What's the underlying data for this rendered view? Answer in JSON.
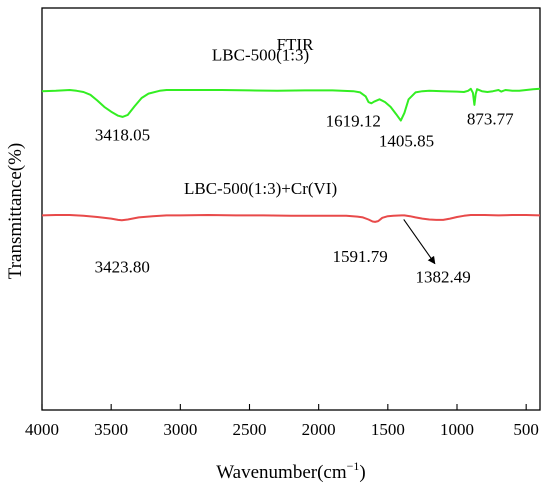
{
  "chart_data": {
    "type": "line",
    "title": "FTIR",
    "xlabel": "Wavenumber(cm⁻¹)",
    "ylabel": "Transmittance(%)",
    "x_reversed": true,
    "xlim": [
      4000,
      400
    ],
    "ylim": [
      0,
      100
    ],
    "y_tick_labels": "none",
    "grid": false,
    "x_ticks": [
      4000,
      3500,
      3000,
      2500,
      2000,
      1500,
      1000,
      500
    ],
    "series": [
      {
        "name": "LBC-500(1:3)",
        "color": "#33ee22",
        "points": [
          [
            4000,
            79.3
          ],
          [
            3900,
            79.4
          ],
          [
            3800,
            79.6
          ],
          [
            3750,
            79.4
          ],
          [
            3700,
            79.1
          ],
          [
            3650,
            78.4
          ],
          [
            3600,
            77.0
          ],
          [
            3550,
            75.4
          ],
          [
            3500,
            74.2
          ],
          [
            3450,
            73.2
          ],
          [
            3418,
            72.9
          ],
          [
            3380,
            73.4
          ],
          [
            3330,
            75.6
          ],
          [
            3280,
            77.6
          ],
          [
            3230,
            78.7
          ],
          [
            3150,
            79.4
          ],
          [
            3100,
            79.6
          ],
          [
            3000,
            79.6
          ],
          [
            2900,
            79.6
          ],
          [
            2700,
            79.6
          ],
          [
            2500,
            79.5
          ],
          [
            2300,
            79.4
          ],
          [
            2100,
            79.5
          ],
          [
            1900,
            79.5
          ],
          [
            1750,
            79.3
          ],
          [
            1700,
            79.0
          ],
          [
            1660,
            78.0
          ],
          [
            1640,
            76.6
          ],
          [
            1619,
            76.3
          ],
          [
            1600,
            76.7
          ],
          [
            1560,
            77.3
          ],
          [
            1520,
            76.6
          ],
          [
            1480,
            75.4
          ],
          [
            1440,
            73.6
          ],
          [
            1406,
            72.0
          ],
          [
            1380,
            73.9
          ],
          [
            1350,
            77.3
          ],
          [
            1300,
            79.0
          ],
          [
            1250,
            79.3
          ],
          [
            1200,
            79.4
          ],
          [
            1100,
            79.3
          ],
          [
            1000,
            79.2
          ],
          [
            950,
            79.1
          ],
          [
            920,
            79.4
          ],
          [
            900,
            79.9
          ],
          [
            885,
            78.9
          ],
          [
            874,
            75.9
          ],
          [
            865,
            78.6
          ],
          [
            855,
            79.8
          ],
          [
            820,
            79.3
          ],
          [
            780,
            79.1
          ],
          [
            740,
            79.3
          ],
          [
            700,
            79.6
          ],
          [
            680,
            79.2
          ],
          [
            650,
            79.6
          ],
          [
            600,
            79.4
          ],
          [
            550,
            79.4
          ],
          [
            500,
            79.6
          ],
          [
            450,
            79.8
          ],
          [
            400,
            79.9
          ]
        ]
      },
      {
        "name": "LBC-500(1:3)+Cr(VI)",
        "color": "#e84a4a",
        "points": [
          [
            4000,
            48.4
          ],
          [
            3900,
            48.5
          ],
          [
            3800,
            48.5
          ],
          [
            3700,
            48.3
          ],
          [
            3600,
            48.0
          ],
          [
            3500,
            47.6
          ],
          [
            3450,
            47.3
          ],
          [
            3423,
            47.2
          ],
          [
            3380,
            47.4
          ],
          [
            3300,
            47.9
          ],
          [
            3200,
            48.2
          ],
          [
            3100,
            48.4
          ],
          [
            3000,
            48.4
          ],
          [
            2800,
            48.5
          ],
          [
            2600,
            48.4
          ],
          [
            2400,
            48.4
          ],
          [
            2200,
            48.3
          ],
          [
            2000,
            48.3
          ],
          [
            1800,
            48.3
          ],
          [
            1720,
            48.1
          ],
          [
            1680,
            47.9
          ],
          [
            1640,
            47.4
          ],
          [
            1610,
            46.9
          ],
          [
            1592,
            46.8
          ],
          [
            1570,
            47.0
          ],
          [
            1540,
            47.8
          ],
          [
            1500,
            48.2
          ],
          [
            1460,
            48.3
          ],
          [
            1400,
            48.4
          ],
          [
            1380,
            48.4
          ],
          [
            1340,
            48.2
          ],
          [
            1300,
            47.9
          ],
          [
            1250,
            47.6
          ],
          [
            1200,
            47.4
          ],
          [
            1150,
            47.3
          ],
          [
            1100,
            47.3
          ],
          [
            1050,
            47.6
          ],
          [
            1000,
            48.0
          ],
          [
            950,
            48.3
          ],
          [
            900,
            48.5
          ],
          [
            800,
            48.5
          ],
          [
            700,
            48.4
          ],
          [
            600,
            48.5
          ],
          [
            500,
            48.5
          ],
          [
            400,
            48.4
          ]
        ]
      }
    ],
    "annotations": [
      {
        "text": "LBC-500(1:3)",
        "x": 2420,
        "y": 87
      },
      {
        "text": "3418.05",
        "x": 3418,
        "y": 67
      },
      {
        "text": "1619.12",
        "x": 1750,
        "y": 70.5
      },
      {
        "text": "1405.85",
        "x": 1365,
        "y": 65.5
      },
      {
        "text": "873.77",
        "x": 760,
        "y": 71
      },
      {
        "text": "LBC-500(1:3)+Cr(VI)",
        "x": 2420,
        "y": 53.7
      },
      {
        "text": "3423.80",
        "x": 3420,
        "y": 34.2
      },
      {
        "text": "1591.79",
        "x": 1700,
        "y": 36.8
      },
      {
        "text": "1382.49",
        "x": 1100,
        "y": 31.7
      }
    ],
    "arrow": {
      "from": [
        1385,
        47.4
      ],
      "to": [
        1160,
        36.4
      ]
    }
  }
}
